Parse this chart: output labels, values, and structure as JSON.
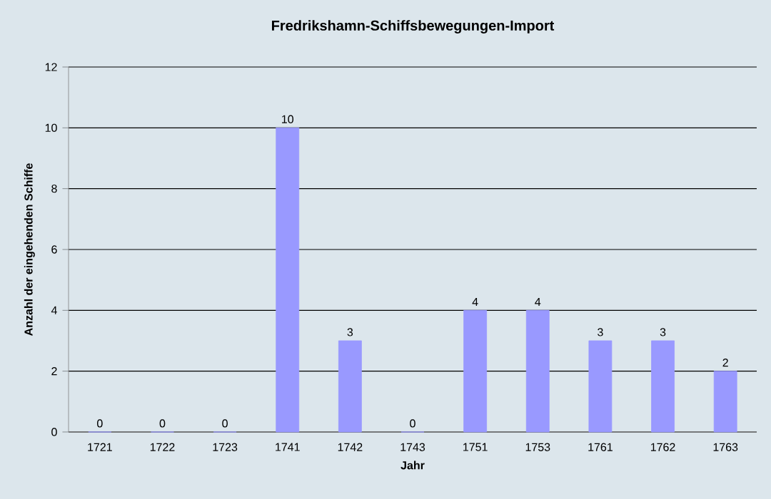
{
  "chart_data": {
    "type": "bar",
    "title": "Fredrikshamn-Schiffsbewegungen-Import",
    "xlabel": "Jahr",
    "ylabel": "Anzahl der eingehenden Schiffe",
    "categories": [
      "1721",
      "1722",
      "1723",
      "1741",
      "1742",
      "1743",
      "1751",
      "1753",
      "1761",
      "1762",
      "1763"
    ],
    "values": [
      0,
      0,
      0,
      10,
      3,
      0,
      4,
      4,
      3,
      3,
      2
    ],
    "color": "#9999ff",
    "ylim": [
      0,
      12
    ],
    "yticks": [
      0,
      2,
      4,
      6,
      8,
      10,
      12
    ],
    "grid": "y",
    "data_labels": true
  }
}
